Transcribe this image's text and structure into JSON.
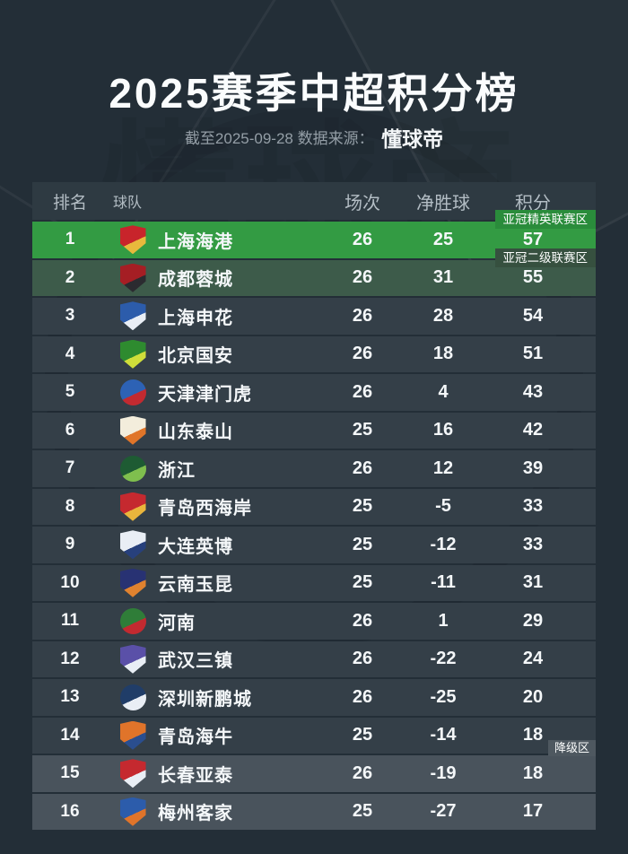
{
  "page": {
    "title": "2025赛季中超积分榜",
    "subtitle_prefix": "截至2025-09-28 数据来源：",
    "subtitle_source": "懂球帝",
    "background": "#232E37",
    "row_background": "#343F48",
    "header_background": "#2E3A42"
  },
  "chart_data": {
    "type": "table",
    "title": "2025赛季中超积分榜",
    "as_of": "2025-09-28",
    "source": "懂球帝",
    "columns": [
      "排名",
      "球队",
      "场次",
      "净胜球",
      "积分"
    ],
    "zones": {
      "acl_elite": {
        "label": "亚冠精英联赛区",
        "row_bg": "#339B43",
        "badge_bg": "#2A8C3B"
      },
      "acl_two": {
        "label": "亚冠二级联赛区",
        "row_bg": "#3D5B4A",
        "badge_bg": "#36503F"
      },
      "relegation": {
        "label": "降级区",
        "row_bg": "#49535C",
        "badge_bg": "#4E5860"
      }
    },
    "rows": [
      {
        "rank": 1,
        "team": "上海海港",
        "played": 26,
        "goal_diff": 25,
        "points": 57,
        "zone": "acl_elite",
        "show_badge": true,
        "crest": [
          "#C8242B",
          "#E8B93C"
        ],
        "crest_shape": "shield"
      },
      {
        "rank": 2,
        "team": "成都蓉城",
        "played": 26,
        "goal_diff": 31,
        "points": 55,
        "zone": "acl_two",
        "show_badge": true,
        "crest": [
          "#A51E24",
          "#2B2B30"
        ],
        "crest_shape": "shield"
      },
      {
        "rank": 3,
        "team": "上海申花",
        "played": 26,
        "goal_diff": 28,
        "points": 54,
        "zone": null,
        "show_badge": false,
        "crest": [
          "#2C5CAB",
          "#E9EEF5"
        ],
        "crest_shape": "shield"
      },
      {
        "rank": 4,
        "team": "北京国安",
        "played": 26,
        "goal_diff": 18,
        "points": 51,
        "zone": null,
        "show_badge": false,
        "crest": [
          "#2E8B2F",
          "#CFDE3A"
        ],
        "crest_shape": "shield"
      },
      {
        "rank": 5,
        "team": "天津津门虎",
        "played": 26,
        "goal_diff": 4,
        "points": 43,
        "zone": null,
        "show_badge": false,
        "crest": [
          "#2D62B5",
          "#C22A30"
        ],
        "crest_shape": "circle"
      },
      {
        "rank": 6,
        "team": "山东泰山",
        "played": 25,
        "goal_diff": 16,
        "points": 42,
        "zone": null,
        "show_badge": false,
        "crest": [
          "#F3EDDC",
          "#E07529"
        ],
        "crest_shape": "shield"
      },
      {
        "rank": 7,
        "team": "浙江",
        "played": 26,
        "goal_diff": 12,
        "points": 39,
        "zone": null,
        "show_badge": false,
        "crest": [
          "#1E5B33",
          "#7FBF4E"
        ],
        "crest_shape": "circle"
      },
      {
        "rank": 8,
        "team": "青岛西海岸",
        "played": 25,
        "goal_diff": -5,
        "points": 33,
        "zone": null,
        "show_badge": false,
        "crest": [
          "#C5292F",
          "#E9B53C"
        ],
        "crest_shape": "shield"
      },
      {
        "rank": 9,
        "team": "大连英博",
        "played": 25,
        "goal_diff": -12,
        "points": 33,
        "zone": null,
        "show_badge": false,
        "crest": [
          "#E9EEF5",
          "#27407C"
        ],
        "crest_shape": "shield"
      },
      {
        "rank": 10,
        "team": "云南玉昆",
        "played": 25,
        "goal_diff": -11,
        "points": 31,
        "zone": null,
        "show_badge": false,
        "crest": [
          "#283273",
          "#E0822F"
        ],
        "crest_shape": "shield"
      },
      {
        "rank": 11,
        "team": "河南",
        "played": 26,
        "goal_diff": 1,
        "points": 29,
        "zone": null,
        "show_badge": false,
        "crest": [
          "#2F7D38",
          "#C22A30"
        ],
        "crest_shape": "circle"
      },
      {
        "rank": 12,
        "team": "武汉三镇",
        "played": 26,
        "goal_diff": -22,
        "points": 24,
        "zone": null,
        "show_badge": false,
        "crest": [
          "#5A50A8",
          "#E9EEF5"
        ],
        "crest_shape": "shield"
      },
      {
        "rank": 13,
        "team": "深圳新鹏城",
        "played": 26,
        "goal_diff": -25,
        "points": 20,
        "zone": null,
        "show_badge": false,
        "crest": [
          "#203D68",
          "#E9EEF5"
        ],
        "crest_shape": "circle"
      },
      {
        "rank": 14,
        "team": "青岛海牛",
        "played": 25,
        "goal_diff": -14,
        "points": 18,
        "zone": null,
        "show_badge": false,
        "crest": [
          "#E0742A",
          "#2A4E8F"
        ],
        "crest_shape": "shield"
      },
      {
        "rank": 15,
        "team": "长春亚泰",
        "played": 26,
        "goal_diff": -19,
        "points": 18,
        "zone": "relegation",
        "show_badge": true,
        "crest": [
          "#C5292F",
          "#E9EEF5"
        ],
        "crest_shape": "shield"
      },
      {
        "rank": 16,
        "team": "梅州客家",
        "played": 25,
        "goal_diff": -27,
        "points": 17,
        "zone": "relegation",
        "show_badge": false,
        "crest": [
          "#2C5CAB",
          "#E0742A"
        ],
        "crest_shape": "shield"
      }
    ]
  }
}
